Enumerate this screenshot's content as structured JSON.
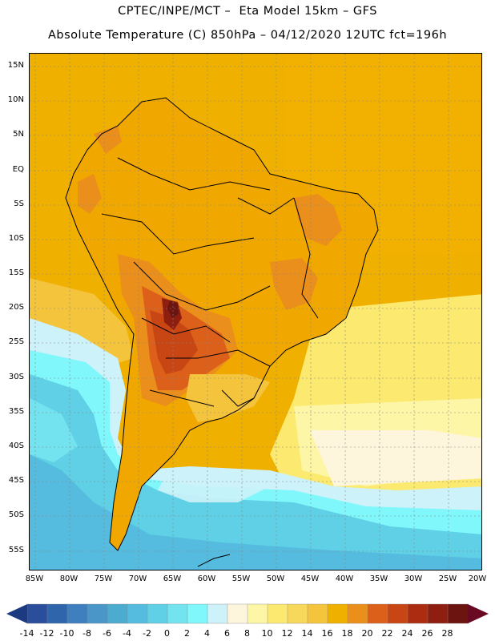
{
  "header": {
    "line1": "CPTEC/INPE/MCT –  Eta Model 15km – GFS",
    "line2": "Absolute Temperature (C) 850hPa – 04/12/2020 12UTC fct=196h"
  },
  "map": {
    "lat_labels": [
      "15N",
      "10N",
      "5N",
      "EQ",
      "5S",
      "10S",
      "15S",
      "20S",
      "25S",
      "30S",
      "35S",
      "40S",
      "45S",
      "50S",
      "55S"
    ],
    "lon_labels": [
      "85W",
      "80W",
      "75W",
      "70W",
      "65W",
      "60W",
      "55W",
      "50W",
      "45W",
      "40W",
      "35W",
      "30W",
      "25W",
      "20W"
    ],
    "colors": {
      "land_warm": "#f0a800",
      "ocean_warm": "#f0b400",
      "hot_core": "#7a1c0c",
      "cold_ocean": "#5cc8e6"
    }
  },
  "colorbar": {
    "labels": [
      "-14",
      "-12",
      "-10",
      "-8",
      "-6",
      "-4",
      "-2",
      "0",
      "2",
      "4",
      "6",
      "8",
      "10",
      "12",
      "14",
      "16",
      "18",
      "20",
      "22",
      "24",
      "26",
      "28"
    ],
    "colors": [
      "#2b4e9c",
      "#2f66ab",
      "#3f7fbf",
      "#4a96c8",
      "#4caccf",
      "#55bcdf",
      "#5fd0e6",
      "#73e3f0",
      "#7ff7fb",
      "#cdf2fa",
      "#fdf6dd",
      "#fdf6a6",
      "#fce970",
      "#f8d85a",
      "#f4c43c",
      "#f0b000",
      "#eb8f1c",
      "#dd601a",
      "#c74613",
      "#ab2c10",
      "#8e1e10",
      "#6c1410"
    ],
    "under_color": "#1b3a80",
    "over_color": "#6a0a22"
  }
}
